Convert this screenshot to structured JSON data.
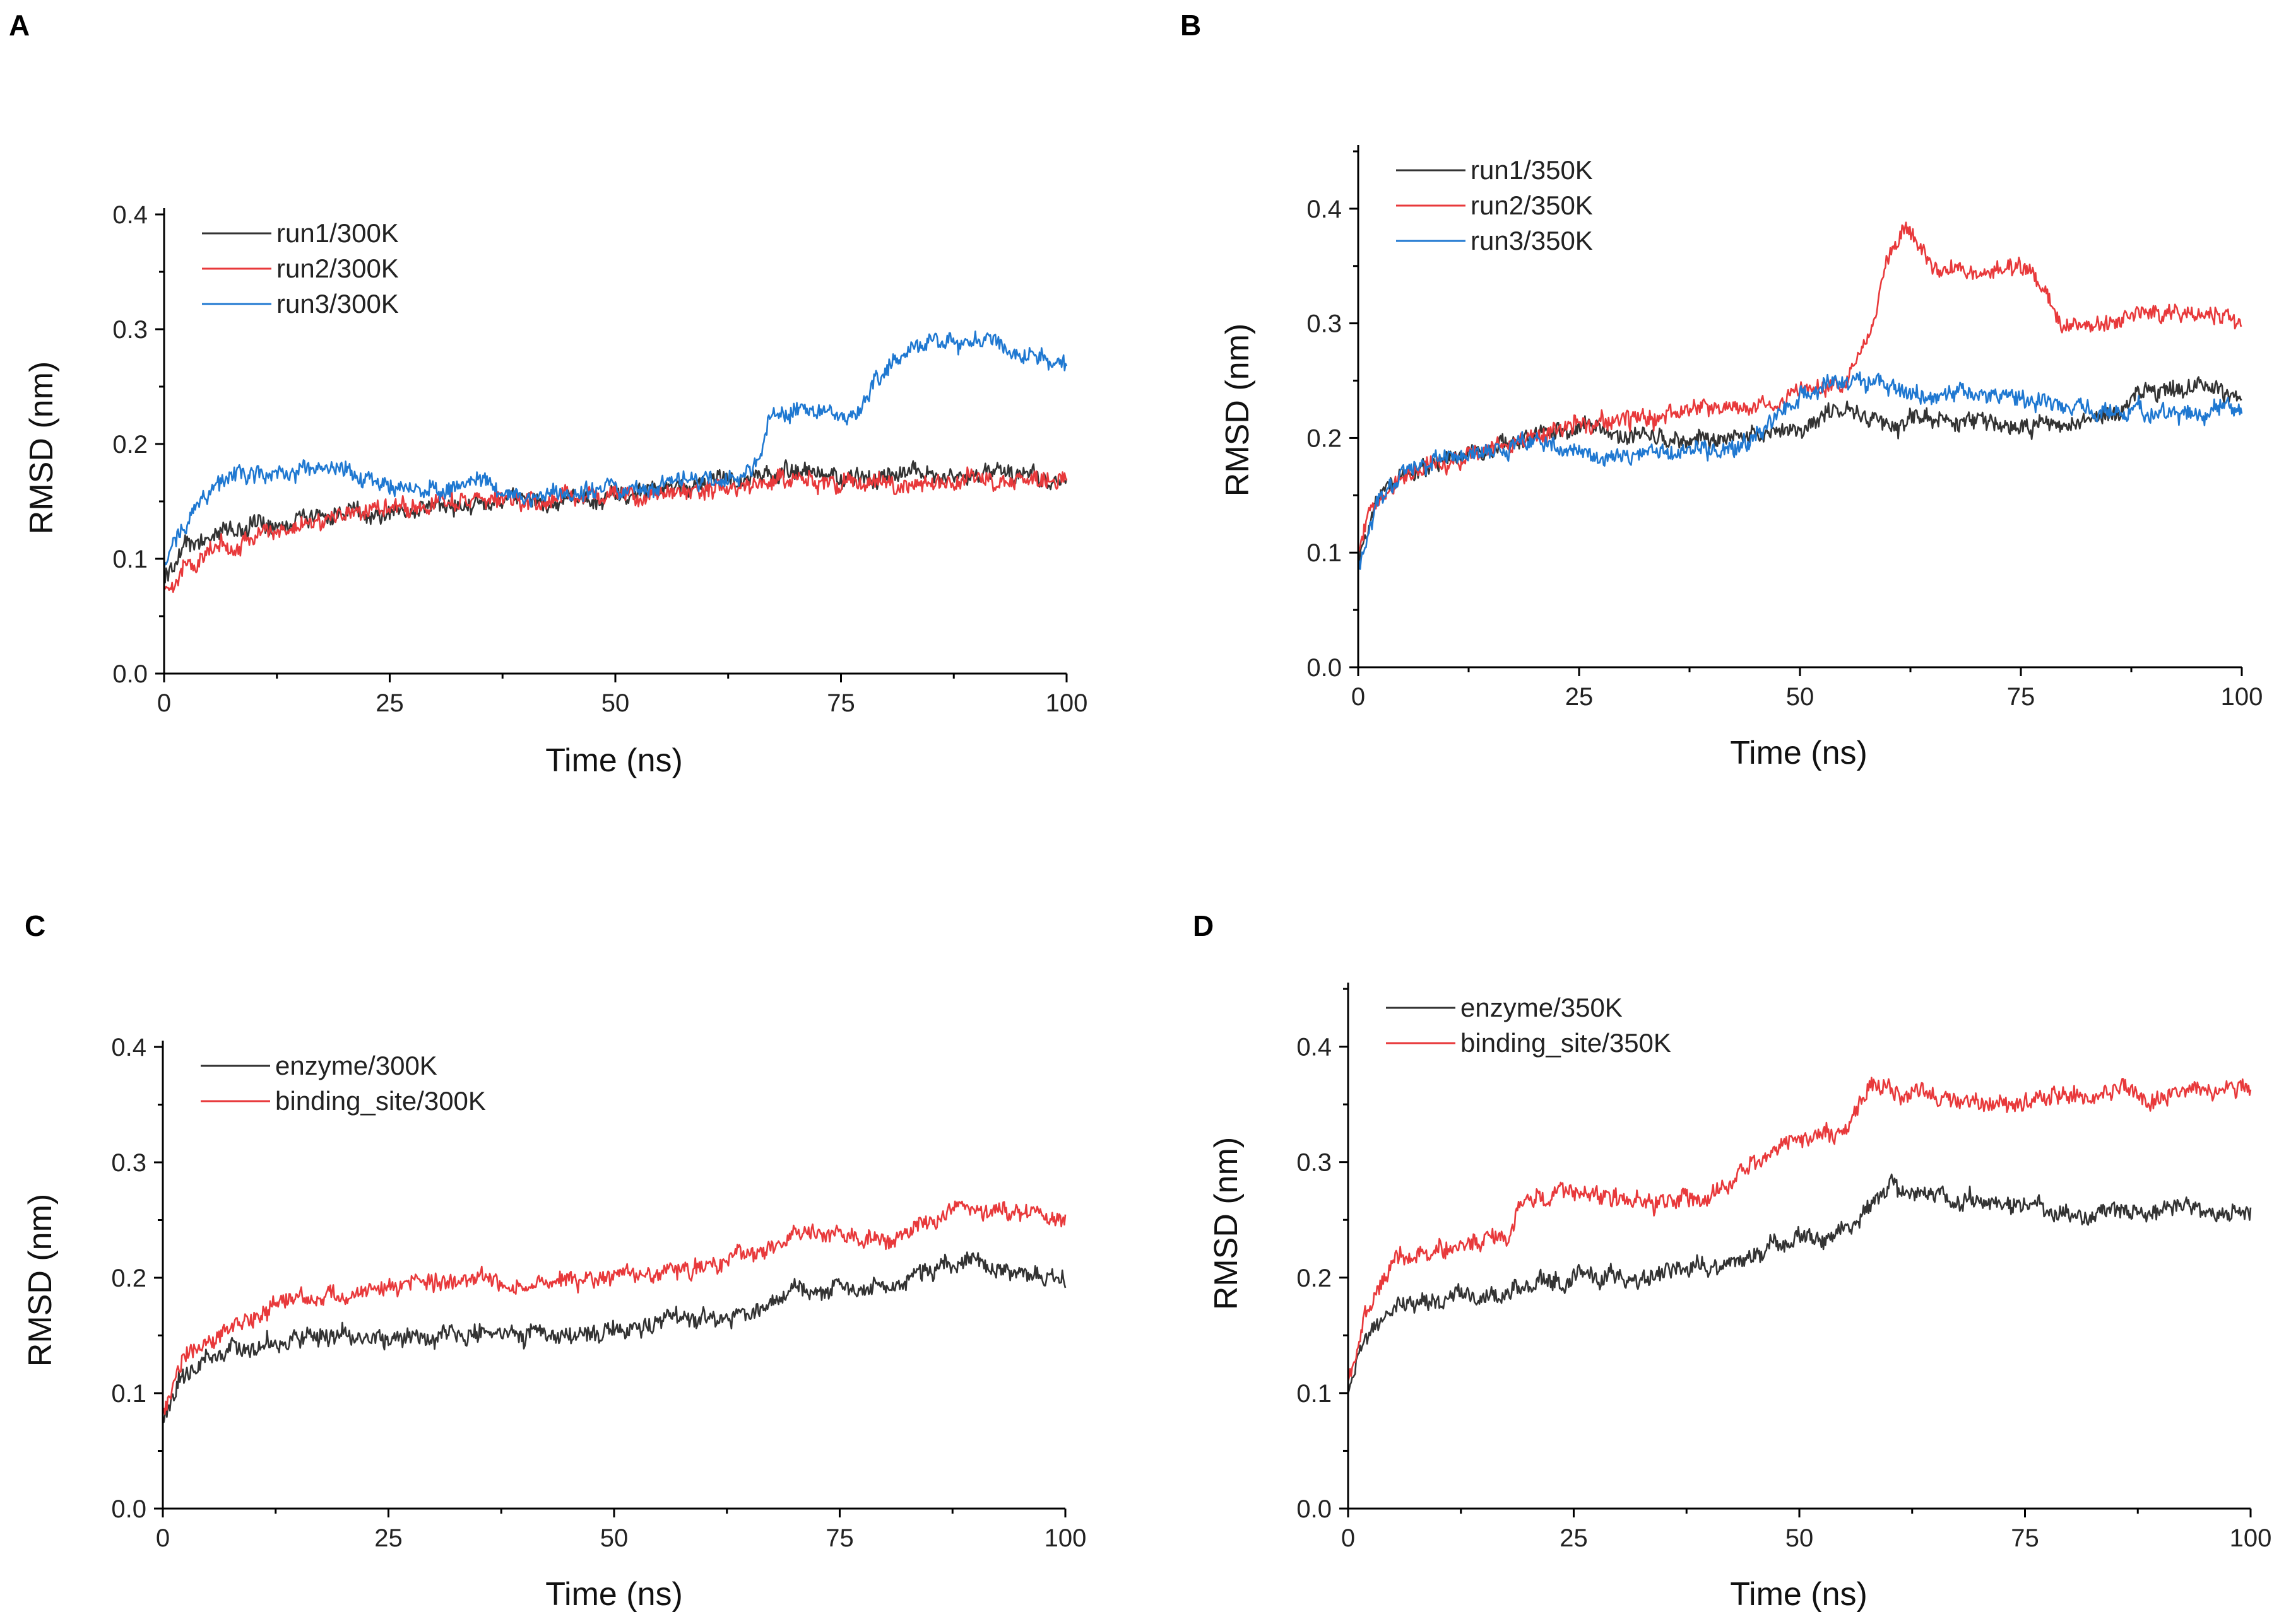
{
  "figure": {
    "panels": [
      {
        "letter": "A",
        "xlabel": "Time (ns)",
        "ylabel": "RMSD (nm)"
      },
      {
        "letter": "B",
        "xlabel": "Time (ns)",
        "ylabel": "RMSD (nm)"
      },
      {
        "letter": "C",
        "xlabel": "Time (ns)",
        "ylabel": "RMSD (nm)"
      },
      {
        "letter": "D",
        "xlabel": "Time (ns)",
        "ylabel": "RMSD (nm)"
      }
    ]
  },
  "chart_data": [
    {
      "type": "line",
      "panel": "A",
      "title": "",
      "xlabel": "Time (ns)",
      "ylabel": "RMSD (nm)",
      "xlim": [
        0,
        100
      ],
      "ylim": [
        0,
        0.4
      ],
      "xticks": [
        "0",
        "25",
        "50",
        "75",
        "100"
      ],
      "yticks": [
        "0.0",
        "0.1",
        "0.2",
        "0.3",
        "0.4"
      ],
      "legend": "top-left",
      "series": [
        {
          "name": "run1/300K",
          "color": "#333333",
          "x": [
            0,
            2,
            5,
            10,
            15,
            20,
            25,
            30,
            35,
            40,
            45,
            50,
            55,
            60,
            65,
            70,
            75,
            80,
            85,
            90,
            95,
            100
          ],
          "y": [
            0.08,
            0.11,
            0.12,
            0.13,
            0.135,
            0.14,
            0.14,
            0.145,
            0.15,
            0.15,
            0.15,
            0.155,
            0.16,
            0.165,
            0.17,
            0.175,
            0.17,
            0.175,
            0.175,
            0.175,
            0.17,
            0.17
          ]
        },
        {
          "name": "run2/300K",
          "color": "#e8393b",
          "x": [
            0,
            2,
            5,
            10,
            15,
            20,
            25,
            30,
            35,
            40,
            45,
            50,
            55,
            60,
            65,
            70,
            75,
            80,
            85,
            90,
            95,
            100
          ],
          "y": [
            0.075,
            0.09,
            0.105,
            0.12,
            0.13,
            0.14,
            0.145,
            0.15,
            0.15,
            0.15,
            0.155,
            0.155,
            0.155,
            0.16,
            0.165,
            0.17,
            0.165,
            0.165,
            0.165,
            0.17,
            0.165,
            0.17
          ]
        },
        {
          "name": "run3/300K",
          "color": "#1f78d1",
          "x": [
            0,
            2,
            5,
            8,
            10,
            15,
            20,
            25,
            30,
            35,
            40,
            45,
            50,
            55,
            60,
            65,
            66,
            67,
            70,
            73,
            75,
            78,
            80,
            85,
            90,
            95,
            100
          ],
          "y": [
            0.09,
            0.13,
            0.16,
            0.175,
            0.17,
            0.175,
            0.175,
            0.165,
            0.16,
            0.17,
            0.15,
            0.16,
            0.16,
            0.165,
            0.17,
            0.175,
            0.19,
            0.22,
            0.23,
            0.23,
            0.22,
            0.24,
            0.27,
            0.29,
            0.29,
            0.28,
            0.27
          ]
        }
      ]
    },
    {
      "type": "line",
      "panel": "B",
      "title": "",
      "xlabel": "Time (ns)",
      "ylabel": "RMSD (nm)",
      "xlim": [
        0,
        100
      ],
      "ylim": [
        0,
        0.45
      ],
      "xticks": [
        "0",
        "25",
        "50",
        "75",
        "100"
      ],
      "yticks": [
        "0.0",
        "0.1",
        "0.2",
        "0.3",
        "0.4"
      ],
      "legend": "top-left",
      "series": [
        {
          "name": "run1/350K",
          "color": "#333333",
          "x": [
            0,
            2,
            5,
            10,
            15,
            20,
            25,
            30,
            35,
            40,
            45,
            50,
            55,
            60,
            65,
            70,
            75,
            80,
            85,
            90,
            95,
            100
          ],
          "y": [
            0.09,
            0.15,
            0.17,
            0.18,
            0.19,
            0.2,
            0.21,
            0.2,
            0.2,
            0.2,
            0.2,
            0.21,
            0.22,
            0.215,
            0.215,
            0.215,
            0.21,
            0.21,
            0.22,
            0.24,
            0.245,
            0.24
          ]
        },
        {
          "name": "run2/350K",
          "color": "#e8393b",
          "x": [
            0,
            2,
            5,
            10,
            15,
            20,
            25,
            30,
            35,
            40,
            45,
            50,
            55,
            58,
            60,
            62,
            65,
            70,
            75,
            78,
            80,
            85,
            90,
            95,
            100
          ],
          "y": [
            0.1,
            0.15,
            0.17,
            0.18,
            0.19,
            0.2,
            0.21,
            0.215,
            0.22,
            0.225,
            0.225,
            0.24,
            0.25,
            0.3,
            0.36,
            0.38,
            0.35,
            0.34,
            0.35,
            0.32,
            0.3,
            0.3,
            0.31,
            0.31,
            0.3
          ]
        },
        {
          "name": "run3/350K",
          "color": "#1f78d1",
          "x": [
            0,
            2,
            5,
            10,
            15,
            20,
            25,
            30,
            35,
            40,
            45,
            50,
            55,
            60,
            65,
            70,
            75,
            80,
            85,
            90,
            95,
            100
          ],
          "y": [
            0.09,
            0.14,
            0.17,
            0.18,
            0.19,
            0.195,
            0.19,
            0.18,
            0.185,
            0.19,
            0.2,
            0.24,
            0.25,
            0.245,
            0.235,
            0.24,
            0.235,
            0.225,
            0.225,
            0.225,
            0.22,
            0.23
          ]
        }
      ]
    },
    {
      "type": "line",
      "panel": "C",
      "title": "",
      "xlabel": "Time (ns)",
      "ylabel": "RMSD (nm)",
      "xlim": [
        0,
        100
      ],
      "ylim": [
        0,
        0.4
      ],
      "xticks": [
        "0",
        "25",
        "50",
        "75",
        "100"
      ],
      "yticks": [
        "0.0",
        "0.1",
        "0.2",
        "0.3",
        "0.4"
      ],
      "legend": "top-left",
      "series": [
        {
          "name": "enzyme/300K",
          "color": "#333333",
          "x": [
            0,
            2,
            5,
            10,
            15,
            20,
            25,
            30,
            35,
            40,
            45,
            50,
            55,
            60,
            65,
            70,
            75,
            80,
            85,
            90,
            95,
            100
          ],
          "y": [
            0.08,
            0.11,
            0.13,
            0.14,
            0.15,
            0.15,
            0.145,
            0.15,
            0.155,
            0.15,
            0.15,
            0.155,
            0.16,
            0.165,
            0.17,
            0.19,
            0.195,
            0.19,
            0.205,
            0.21,
            0.205,
            0.2
          ]
        },
        {
          "name": "binding_site/300K",
          "color": "#e8393b",
          "x": [
            0,
            2,
            5,
            10,
            15,
            20,
            25,
            30,
            35,
            40,
            45,
            50,
            55,
            60,
            65,
            70,
            75,
            80,
            85,
            90,
            95,
            100
          ],
          "y": [
            0.085,
            0.12,
            0.15,
            0.165,
            0.18,
            0.185,
            0.19,
            0.195,
            0.2,
            0.19,
            0.2,
            0.2,
            0.205,
            0.21,
            0.22,
            0.235,
            0.24,
            0.23,
            0.25,
            0.26,
            0.255,
            0.25
          ]
        }
      ]
    },
    {
      "type": "line",
      "panel": "D",
      "title": "",
      "xlabel": "Time (ns)",
      "ylabel": "RMSD (nm)",
      "xlim": [
        0,
        100
      ],
      "ylim": [
        0,
        0.45
      ],
      "xticks": [
        "0",
        "25",
        "50",
        "75",
        "100"
      ],
      "yticks": [
        "0.0",
        "0.1",
        "0.2",
        "0.3",
        "0.4"
      ],
      "legend": "top-left",
      "series": [
        {
          "name": "enzyme/350K",
          "color": "#333333",
          "x": [
            0,
            2,
            5,
            10,
            15,
            20,
            25,
            30,
            35,
            40,
            45,
            50,
            55,
            58,
            60,
            65,
            70,
            75,
            80,
            85,
            90,
            95,
            100
          ],
          "y": [
            0.1,
            0.15,
            0.17,
            0.18,
            0.185,
            0.195,
            0.2,
            0.2,
            0.205,
            0.21,
            0.22,
            0.235,
            0.24,
            0.26,
            0.28,
            0.27,
            0.265,
            0.265,
            0.255,
            0.255,
            0.26,
            0.26,
            0.255
          ]
        },
        {
          "name": "binding_site/350K",
          "color": "#e8393b",
          "x": [
            0,
            2,
            5,
            10,
            15,
            18,
            20,
            25,
            30,
            35,
            40,
            45,
            50,
            55,
            58,
            60,
            65,
            70,
            75,
            80,
            85,
            90,
            95,
            100
          ],
          "y": [
            0.11,
            0.17,
            0.21,
            0.225,
            0.235,
            0.24,
            0.27,
            0.275,
            0.27,
            0.265,
            0.27,
            0.3,
            0.32,
            0.33,
            0.37,
            0.36,
            0.355,
            0.35,
            0.35,
            0.355,
            0.36,
            0.355,
            0.365,
            0.36
          ]
        }
      ]
    }
  ]
}
